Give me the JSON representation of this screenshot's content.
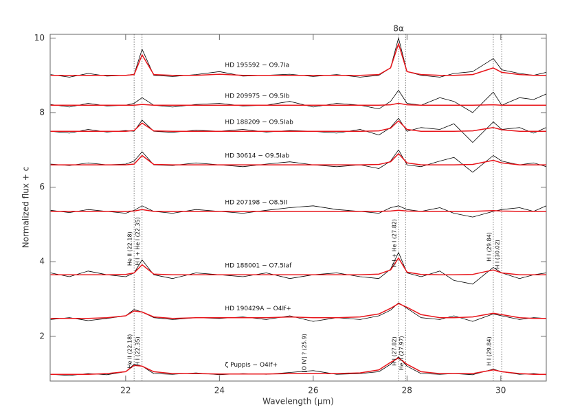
{
  "chart_data": {
    "type": "spectra",
    "xlabel": "Wavelength (μm)",
    "ylabel": "Normalized flux + c",
    "xlim": [
      20.39,
      30.97
    ],
    "ylim": [
      0.8,
      10.1
    ],
    "xticks": [
      22,
      24,
      26,
      28,
      30
    ],
    "yticks": [
      2,
      4,
      6,
      8,
      10
    ],
    "colors": {
      "observed": "#000000",
      "model": "#e8141a"
    },
    "lines": [
      22.18,
      22.35,
      27.82,
      27.97,
      29.84,
      30.02
    ],
    "x": [
      20.4,
      20.8,
      21.2,
      21.6,
      22.0,
      22.18,
      22.35,
      22.6,
      23.0,
      23.5,
      24.0,
      24.5,
      25.0,
      25.5,
      26.0,
      26.5,
      27.0,
      27.4,
      27.65,
      27.82,
      28.0,
      28.3,
      28.7,
      29.0,
      29.4,
      29.84,
      30.02,
      30.4,
      30.7,
      30.97
    ],
    "spectra": [
      {
        "name": "HD 195592 − O9.7Ia",
        "observed": [
          9.02,
          8.95,
          9.05,
          8.98,
          9.0,
          9.03,
          9.7,
          9.0,
          8.97,
          9.02,
          9.1,
          8.98,
          9.0,
          9.03,
          8.97,
          9.02,
          8.95,
          9.0,
          9.2,
          10.0,
          9.1,
          9.0,
          8.95,
          9.05,
          9.1,
          9.45,
          9.15,
          9.05,
          9.0,
          9.08
        ],
        "model": [
          9.0,
          9.0,
          9.0,
          9.0,
          9.0,
          9.02,
          9.55,
          9.02,
          9.0,
          9.0,
          9.03,
          9.0,
          9.0,
          9.0,
          9.0,
          9.0,
          9.0,
          9.02,
          9.2,
          9.85,
          9.1,
          9.02,
          9.0,
          9.0,
          9.02,
          9.2,
          9.08,
          9.02,
          9.0,
          9.0
        ]
      },
      {
        "name": "HD 209975 − O9.5Ib",
        "observed": [
          8.22,
          8.15,
          8.25,
          8.18,
          8.2,
          8.25,
          8.4,
          8.2,
          8.15,
          8.22,
          8.25,
          8.18,
          8.2,
          8.3,
          8.15,
          8.25,
          8.2,
          8.1,
          8.3,
          8.6,
          8.25,
          8.2,
          8.4,
          8.3,
          8.0,
          8.55,
          8.2,
          8.4,
          8.35,
          8.5
        ],
        "model": [
          8.2,
          8.2,
          8.2,
          8.2,
          8.2,
          8.2,
          8.22,
          8.2,
          8.2,
          8.2,
          8.2,
          8.2,
          8.2,
          8.2,
          8.2,
          8.2,
          8.2,
          8.2,
          8.21,
          8.25,
          8.21,
          8.2,
          8.2,
          8.2,
          8.2,
          8.21,
          8.2,
          8.2,
          8.2,
          8.2
        ]
      },
      {
        "name": "HD 188209 − O9.5Iab",
        "observed": [
          7.5,
          7.45,
          7.55,
          7.48,
          7.52,
          7.5,
          7.8,
          7.5,
          7.47,
          7.53,
          7.5,
          7.55,
          7.48,
          7.52,
          7.5,
          7.45,
          7.55,
          7.4,
          7.6,
          7.85,
          7.5,
          7.6,
          7.55,
          7.7,
          7.2,
          7.75,
          7.55,
          7.6,
          7.45,
          7.6
        ],
        "model": [
          7.5,
          7.5,
          7.5,
          7.5,
          7.5,
          7.52,
          7.72,
          7.51,
          7.5,
          7.5,
          7.5,
          7.5,
          7.5,
          7.5,
          7.5,
          7.5,
          7.5,
          7.51,
          7.58,
          7.78,
          7.55,
          7.5,
          7.5,
          7.5,
          7.51,
          7.6,
          7.54,
          7.5,
          7.5,
          7.5
        ]
      },
      {
        "name": "HD 30614 − O9.5Iab",
        "observed": [
          6.62,
          6.58,
          6.65,
          6.6,
          6.62,
          6.7,
          6.95,
          6.6,
          6.58,
          6.65,
          6.6,
          6.55,
          6.62,
          6.68,
          6.6,
          6.55,
          6.6,
          6.5,
          6.7,
          7.0,
          6.6,
          6.55,
          6.7,
          6.8,
          6.4,
          6.85,
          6.7,
          6.6,
          6.65,
          6.55
        ],
        "model": [
          6.6,
          6.6,
          6.6,
          6.6,
          6.6,
          6.62,
          6.85,
          6.61,
          6.6,
          6.6,
          6.6,
          6.6,
          6.6,
          6.6,
          6.6,
          6.6,
          6.6,
          6.61,
          6.68,
          6.9,
          6.65,
          6.6,
          6.6,
          6.6,
          6.61,
          6.72,
          6.65,
          6.6,
          6.6,
          6.6
        ]
      },
      {
        "name": "HD 207198 − O8.5II",
        "observed": [
          5.38,
          5.32,
          5.4,
          5.35,
          5.3,
          5.38,
          5.5,
          5.35,
          5.3,
          5.4,
          5.35,
          5.3,
          5.38,
          5.45,
          5.5,
          5.4,
          5.35,
          5.3,
          5.45,
          5.5,
          5.4,
          5.35,
          5.45,
          5.3,
          5.2,
          5.35,
          5.4,
          5.45,
          5.35,
          5.5
        ],
        "model": [
          5.35,
          5.35,
          5.35,
          5.35,
          5.35,
          5.36,
          5.4,
          5.35,
          5.35,
          5.35,
          5.35,
          5.35,
          5.35,
          5.35,
          5.35,
          5.35,
          5.35,
          5.35,
          5.36,
          5.38,
          5.36,
          5.35,
          5.35,
          5.35,
          5.35,
          5.37,
          5.36,
          5.35,
          5.35,
          5.35
        ]
      },
      {
        "name": "HD 188001 − O7.5Iaf",
        "observed": [
          3.7,
          3.6,
          3.75,
          3.65,
          3.6,
          3.7,
          4.05,
          3.65,
          3.55,
          3.7,
          3.65,
          3.6,
          3.7,
          3.55,
          3.65,
          3.7,
          3.6,
          3.55,
          3.8,
          4.25,
          3.7,
          3.6,
          3.75,
          3.5,
          3.4,
          3.85,
          3.7,
          3.55,
          3.65,
          3.7
        ],
        "model": [
          3.65,
          3.65,
          3.65,
          3.65,
          3.66,
          3.7,
          3.92,
          3.67,
          3.65,
          3.65,
          3.65,
          3.65,
          3.65,
          3.65,
          3.65,
          3.65,
          3.65,
          3.67,
          3.78,
          4.1,
          3.72,
          3.66,
          3.65,
          3.65,
          3.66,
          3.78,
          3.7,
          3.65,
          3.65,
          3.65
        ]
      },
      {
        "name": "HD 190429A − O4If+",
        "observed": [
          2.45,
          2.5,
          2.42,
          2.48,
          2.55,
          2.72,
          2.65,
          2.5,
          2.45,
          2.5,
          2.48,
          2.52,
          2.45,
          2.55,
          2.4,
          2.5,
          2.45,
          2.55,
          2.7,
          2.9,
          2.75,
          2.5,
          2.45,
          2.55,
          2.4,
          2.6,
          2.55,
          2.45,
          2.5,
          2.48
        ],
        "model": [
          2.48,
          2.48,
          2.48,
          2.5,
          2.55,
          2.68,
          2.65,
          2.52,
          2.48,
          2.5,
          2.5,
          2.5,
          2.5,
          2.52,
          2.5,
          2.5,
          2.52,
          2.6,
          2.75,
          2.88,
          2.78,
          2.58,
          2.5,
          2.5,
          2.52,
          2.62,
          2.58,
          2.5,
          2.48,
          2.48
        ]
      },
      {
        "name": "ζ Puppis − O4If+",
        "observed": [
          0.98,
          0.95,
          1.0,
          0.97,
          1.05,
          1.25,
          1.2,
          1.0,
          0.98,
          1.02,
          0.97,
          1.0,
          0.98,
          1.03,
          1.08,
          0.98,
          1.0,
          1.05,
          1.25,
          1.45,
          1.2,
          1.0,
          0.98,
          1.0,
          0.97,
          1.12,
          1.05,
          0.98,
          1.0,
          0.97
        ],
        "model": [
          0.98,
          0.98,
          0.98,
          1.0,
          1.05,
          1.22,
          1.2,
          1.05,
          1.0,
          1.0,
          0.99,
          0.99,
          0.99,
          1.0,
          1.0,
          1.0,
          1.02,
          1.1,
          1.3,
          1.42,
          1.25,
          1.05,
          1.0,
          1.0,
          1.0,
          1.1,
          1.05,
          1.0,
          0.98,
          0.98
        ]
      }
    ],
    "annotations": [
      {
        "text": "8α",
        "x": 27.82,
        "y": 10.25,
        "rotate": false
      },
      {
        "text": "He II (22.18)",
        "x": 22.18,
        "y": 4.35,
        "rotate": true
      },
      {
        "text": "H I + He I (22.35)",
        "x": 22.35,
        "y": 4.55,
        "rotate": true
      },
      {
        "text": "H I + He I (27.82)",
        "x": 27.82,
        "y": 4.5,
        "rotate": true
      },
      {
        "text": "H I (29.84)",
        "x": 29.84,
        "y": 4.4,
        "rotate": true
      },
      {
        "text": "H I (30.02)",
        "x": 30.02,
        "y": 4.2,
        "rotate": true
      },
      {
        "text": "He II (22.18)",
        "x": 22.18,
        "y": 1.6,
        "rotate": true
      },
      {
        "text": "H I (22.35)",
        "x": 22.35,
        "y": 1.6,
        "rotate": true
      },
      {
        "text": "[O IV] ? (25.9)",
        "x": 25.9,
        "y": 1.55,
        "rotate": true
      },
      {
        "text": "H I (27.82)",
        "x": 27.82,
        "y": 1.6,
        "rotate": true
      },
      {
        "text": "He II (27.97)",
        "x": 27.97,
        "y": 1.55,
        "rotate": true
      },
      {
        "text": "H I (29.84)",
        "x": 29.84,
        "y": 1.6,
        "rotate": true
      }
    ]
  }
}
